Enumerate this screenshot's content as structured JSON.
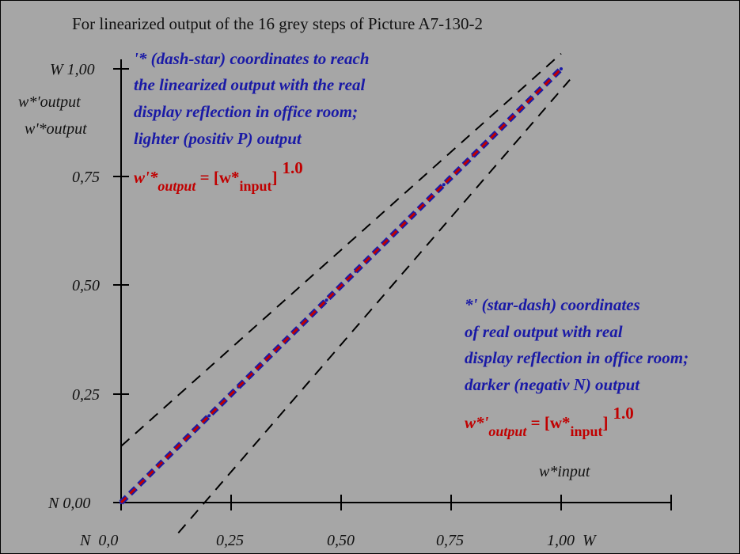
{
  "title": "For linearized output of the 16 grey steps of Picture A7-130-2",
  "left_axis": {
    "top_label": "W 1,00",
    "label_line1": "w*'output",
    "label_line2": "w'*output",
    "ticks": [
      "0,75",
      "0,50",
      "0,25"
    ],
    "origin_label": "N 0,00"
  },
  "bottom_axis": {
    "ticks": [
      "N  0,0",
      "0,25",
      "0,50",
      "0,75",
      "1,00  W"
    ],
    "input_label": "w*input"
  },
  "annotation_upper": {
    "lines": [
      "'* (dash-star) coordinates to reach",
      "the linearized output with the real",
      "display reflection in office room;",
      "lighter (positiv P) output"
    ],
    "formula": {
      "lhs": "w'*",
      "lhs_sub": "output",
      "eq": " = [w*",
      "sub": "input",
      "close": "]",
      "exp": "1.0"
    }
  },
  "annotation_lower": {
    "lines": [
      "*' (star-dash) coordinates",
      "of real output with real",
      "display reflection in office room;",
      "darker (negativ N) output"
    ],
    "formula": {
      "lhs": "w*'",
      "lhs_sub": "output",
      "eq": " = [w*",
      "sub": "input",
      "close": "]",
      "exp": "1.0"
    }
  },
  "colors": {
    "background": "#a6a6a6",
    "blue": "#1a1aa6",
    "red": "#c00000"
  },
  "chart_data": {
    "type": "line",
    "title": "For linearized output of the 16 grey steps of Picture A7-130-2",
    "xlabel": "w*input",
    "ylabel": "w*'output / w'*output",
    "xlim": [
      0,
      1
    ],
    "ylim": [
      0,
      1
    ],
    "grid": false,
    "series": [
      {
        "style": "solid-blue",
        "x": [
          0,
          0.0667,
          0.1333,
          0.2,
          0.2667,
          0.3333,
          0.4,
          0.4667,
          0.5333,
          0.6,
          0.6667,
          0.7333,
          0.8,
          0.8667,
          0.9333,
          1.0
        ],
        "y": [
          0,
          0.0667,
          0.1333,
          0.2,
          0.2667,
          0.3333,
          0.4,
          0.4667,
          0.5333,
          0.6,
          0.6667,
          0.7333,
          0.8,
          0.8667,
          0.9333,
          1.0
        ]
      },
      {
        "style": "dashed-red",
        "x": [
          0,
          1
        ],
        "y": [
          0,
          1
        ]
      },
      {
        "style": "dashed-black-upper",
        "x": [
          0,
          1
        ],
        "y": [
          0.13,
          1.035
        ]
      },
      {
        "style": "dashed-black-lower",
        "x": [
          0.13,
          1.02
        ],
        "y": [
          -0.07,
          0.975
        ]
      }
    ]
  }
}
